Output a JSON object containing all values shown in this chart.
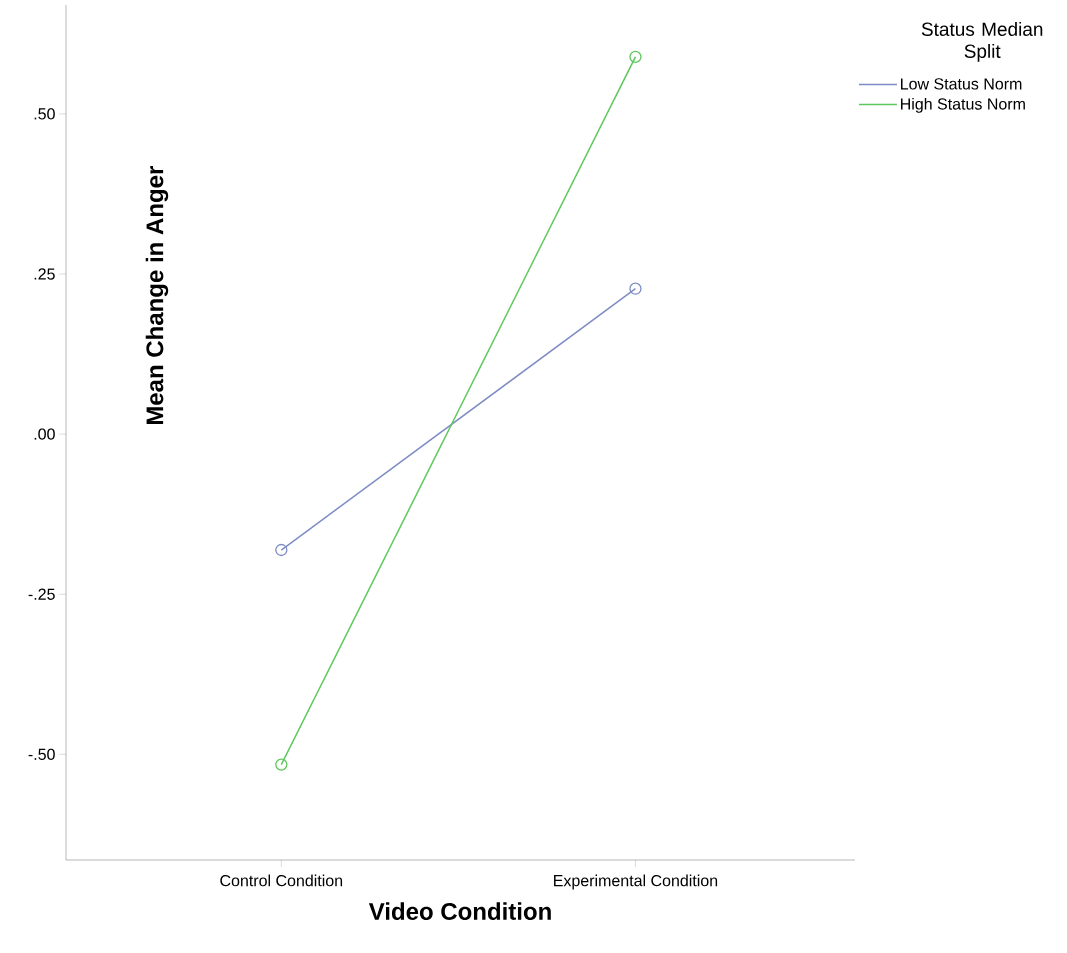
{
  "chart_data": {
    "type": "line",
    "xlabel": "Video Condition",
    "ylabel": "Mean Change in Anger",
    "legend_title": "Status Median Split",
    "categories": [
      "Control Condition",
      "Experimental Condition"
    ],
    "series": [
      {
        "name": "Low Status Norm",
        "color": "#7d8cc4",
        "values": [
          -0.181,
          0.227
        ]
      },
      {
        "name": "High Status Norm",
        "color": "#5ec85e",
        "values": [
          -0.516,
          0.589
        ]
      }
    ],
    "ylim": [
      -0.665,
      0.67
    ],
    "yticks": [
      {
        "value": -0.5,
        "label": "-.50"
      },
      {
        "value": -0.25,
        "label": "-.25"
      },
      {
        "value": 0,
        "label": ".00"
      },
      {
        "value": 0.25,
        "label": ".25"
      },
      {
        "value": 0.5,
        "label": ".50"
      }
    ],
    "marker": "circle",
    "line_style": "solid",
    "grid": false,
    "legend": "right"
  }
}
